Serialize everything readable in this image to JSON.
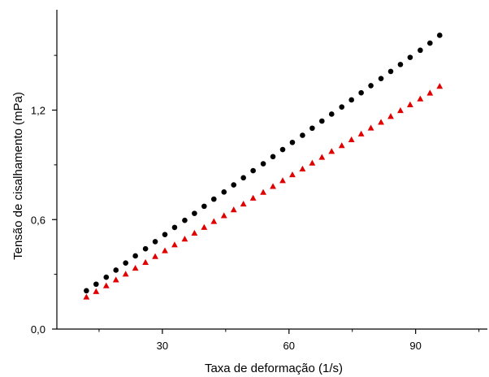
{
  "chart_data": {
    "type": "scatter",
    "title": "",
    "xlabel": "Taxa de deformação (1/s)",
    "ylabel": "Tensão de cisalhamento (mPa)",
    "xlim": [
      5,
      107
    ],
    "ylim": [
      0.0,
      1.75
    ],
    "xticks": [
      30,
      60,
      90
    ],
    "xtick_labels": [
      "30",
      "60",
      "90"
    ],
    "yticks": [
      0.0,
      0.6,
      1.2
    ],
    "ytick_labels": [
      "0,0",
      "0,6",
      "1,2"
    ],
    "grid": false,
    "legend": "none",
    "series": [
      {
        "marker": "circle",
        "color": "#000000",
        "x": [
          12.0,
          14.3,
          16.7,
          19.0,
          21.3,
          23.6,
          26.0,
          28.3,
          30.6,
          32.9,
          35.3,
          37.6,
          39.9,
          42.2,
          44.6,
          46.9,
          49.2,
          51.5,
          53.9,
          56.2,
          58.5,
          60.8,
          63.2,
          65.5,
          67.8,
          70.1,
          72.5,
          74.8,
          77.1,
          79.4,
          81.8,
          84.1,
          86.4,
          88.7,
          91.1,
          93.4,
          95.7
        ],
        "y": [
          0.21,
          0.246,
          0.284,
          0.323,
          0.362,
          0.401,
          0.44,
          0.479,
          0.518,
          0.557,
          0.596,
          0.634,
          0.673,
          0.712,
          0.751,
          0.79,
          0.829,
          0.868,
          0.906,
          0.945,
          0.984,
          1.023,
          1.062,
          1.101,
          1.14,
          1.178,
          1.217,
          1.256,
          1.295,
          1.334,
          1.373,
          1.412,
          1.45,
          1.489,
          1.528,
          1.567,
          1.61
        ]
      },
      {
        "marker": "triangle",
        "color": "#e00000",
        "x": [
          12.0,
          14.3,
          16.7,
          19.0,
          21.3,
          23.6,
          26.0,
          28.3,
          30.6,
          32.9,
          35.3,
          37.6,
          39.9,
          42.2,
          44.6,
          46.9,
          49.2,
          51.5,
          53.9,
          56.2,
          58.5,
          60.8,
          63.2,
          65.5,
          67.8,
          70.1,
          72.5,
          74.8,
          77.1,
          79.4,
          81.8,
          84.1,
          86.4,
          88.7,
          91.1,
          93.4,
          95.7
        ],
        "y": [
          0.175,
          0.205,
          0.237,
          0.269,
          0.301,
          0.333,
          0.365,
          0.397,
          0.429,
          0.461,
          0.493,
          0.525,
          0.557,
          0.589,
          0.621,
          0.653,
          0.685,
          0.717,
          0.749,
          0.781,
          0.813,
          0.845,
          0.877,
          0.909,
          0.941,
          0.973,
          1.005,
          1.037,
          1.069,
          1.101,
          1.133,
          1.165,
          1.197,
          1.229,
          1.261,
          1.293,
          1.33
        ]
      }
    ]
  }
}
